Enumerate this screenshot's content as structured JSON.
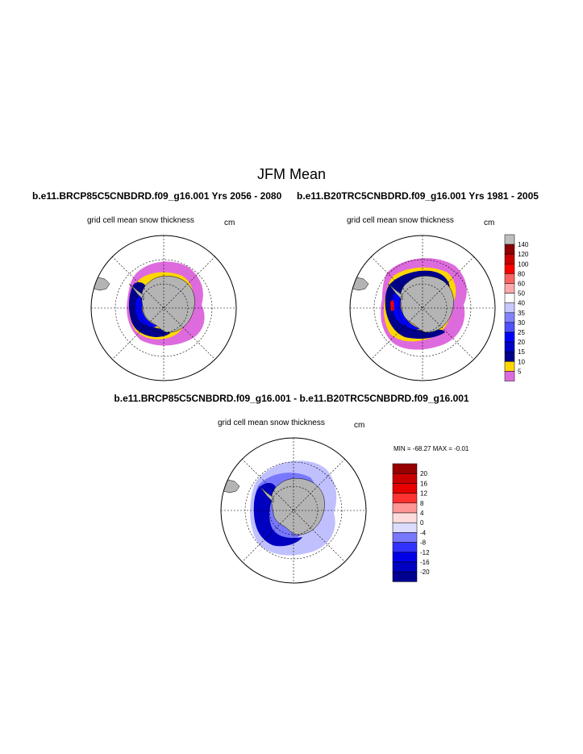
{
  "title": "JFM Mean",
  "panels": [
    {
      "run_title": "b.e11.BRCP85C5CNBDRD.f09_g16.001  Yrs 2056 - 2080",
      "variable": "grid cell mean snow thickness",
      "units": "cm"
    },
    {
      "run_title": "b.e11.B20TRC5CNBDRD.f09_g16.001  Yrs 1981 - 2005",
      "variable": "grid cell mean snow thickness",
      "units": "cm"
    },
    {
      "run_title": "b.e11.BRCP85C5CNBDRD.f09_g16.001 - b.e11.B20TRC5CNBDRD.f09_g16.001",
      "variable": "grid cell mean snow thickness",
      "units": "cm",
      "min_max_text": "MIN = -68.27 MAX =  -0.01"
    }
  ],
  "colorbar_abs": {
    "labels": [
      "140",
      "120",
      "100",
      "80",
      "60",
      "50",
      "40",
      "35",
      "30",
      "25",
      "20",
      "15",
      "10",
      "5"
    ],
    "colors": [
      "#bebebe",
      "#8b0000",
      "#c80000",
      "#ff0000",
      "#ff6464",
      "#ffaaaa",
      "#ffffff",
      "#c8c8ff",
      "#8282ff",
      "#5050ff",
      "#0000ff",
      "#0000c8",
      "#00008b",
      "#ffd700",
      "#de6bde"
    ]
  },
  "colorbar_diff": {
    "labels": [
      "20",
      "16",
      "12",
      "8",
      "4",
      "0",
      "-4",
      "-8",
      "-12",
      "-16",
      "-20"
    ],
    "colors": [
      "#960000",
      "#c80000",
      "#e60000",
      "#ff3232",
      "#ff9696",
      "#ffdcdc",
      "#dcdcff",
      "#7878ff",
      "#3232ff",
      "#0000e6",
      "#0000c0",
      "#000090"
    ]
  },
  "map_colors": {
    "land": "#b4b4b4",
    "pink": "#de6bde",
    "yellow": "#ffd700",
    "dark_blue": "#00008b",
    "blue": "#0000ff",
    "red": "#ff0000",
    "diff_light": "#c0c0ff",
    "diff_mid": "#7878ff",
    "diff_dark": "#0000c0"
  }
}
